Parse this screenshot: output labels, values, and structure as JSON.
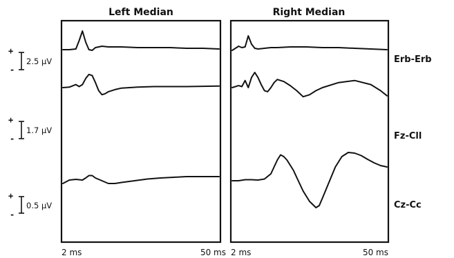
{
  "chart_data": {
    "type": "line",
    "xlabel": "",
    "ylabel": "",
    "xlim": [
      2,
      50
    ],
    "x_tick_labels": [
      "2 ms",
      "50 ms"
    ],
    "panels": [
      {
        "title": "Left Median",
        "series": [
          {
            "name": "Erb-Erb",
            "x": [
              2,
              4,
              6,
              7,
              8,
              9,
              10,
              11,
              12,
              14,
              16,
              20,
              25,
              30,
              35,
              40,
              45,
              50
            ],
            "y": [
              0,
              0,
              0.1,
              1.3,
              2.7,
              1.1,
              0,
              -0.1,
              0.3,
              0.5,
              0.4,
              0.4,
              0.3,
              0.3,
              0.3,
              0.2,
              0.2,
              0.1
            ]
          },
          {
            "name": "Fz-Cll",
            "x": [
              2,
              4,
              6,
              7,
              8,
              9,
              10,
              11,
              12,
              13,
              14,
              15,
              16,
              18,
              20,
              25,
              30,
              40,
              50
            ],
            "y": [
              0,
              0.05,
              0.3,
              0.1,
              0.3,
              0.9,
              1.3,
              1.2,
              0.5,
              -0.3,
              -0.7,
              -0.6,
              -0.4,
              -0.2,
              -0.05,
              0.05,
              0.1,
              0.1,
              0.15
            ]
          },
          {
            "name": "Cz-Cc",
            "x": [
              2,
              4,
              6,
              8,
              9,
              10,
              11,
              12,
              14,
              16,
              18,
              20,
              24,
              28,
              32,
              36,
              40,
              45,
              50
            ],
            "y": [
              -0.08,
              0.02,
              0.04,
              0.02,
              0.08,
              0.15,
              0.15,
              0.08,
              0,
              -0.08,
              -0.08,
              -0.05,
              0,
              0.05,
              0.08,
              0.1,
              0.12,
              0.12,
              0.12
            ]
          }
        ]
      },
      {
        "title": "Right Median",
        "series": [
          {
            "name": "Erb-Erb",
            "x": [
              2,
              3,
              4,
              5,
              6,
              7,
              8,
              9,
              10,
              12,
              14,
              16,
              20,
              25,
              30,
              35,
              40,
              45,
              50
            ],
            "y": [
              -0.1,
              0.2,
              0.5,
              0.3,
              0.4,
              2.0,
              0.8,
              0.2,
              0.1,
              0.2,
              0.3,
              0.3,
              0.4,
              0.4,
              0.3,
              0.3,
              0.2,
              0.1,
              0
            ]
          },
          {
            "name": "Fz-Cll",
            "x": [
              2,
              4,
              5,
              6,
              7,
              8,
              9,
              10,
              11,
              12,
              13,
              14,
              15,
              16,
              17,
              18,
              19,
              20,
              22,
              24,
              26,
              28,
              30,
              35,
              40,
              45,
              48,
              50
            ],
            "y": [
              0,
              0.2,
              0.1,
              0.7,
              0,
              1.0,
              1.5,
              1.0,
              0.3,
              -0.3,
              -0.4,
              0,
              0.5,
              0.8,
              0.7,
              0.6,
              0.4,
              0.2,
              -0.3,
              -0.9,
              -0.7,
              -0.3,
              0,
              0.5,
              0.7,
              0.3,
              -0.3,
              -0.8
            ]
          },
          {
            "name": "Cz-Cc",
            "x": [
              2,
              4,
              6,
              8,
              10,
              12,
              14,
              16,
              17,
              18,
              19,
              20,
              21,
              22,
              24,
              26,
              28,
              29,
              30,
              32,
              34,
              36,
              38,
              40,
              42,
              44,
              46,
              48,
              50
            ],
            "y": [
              0,
              0,
              0.03,
              0.03,
              0.02,
              0.05,
              0.2,
              0.6,
              0.75,
              0.7,
              0.6,
              0.45,
              0.3,
              0.1,
              -0.3,
              -0.6,
              -0.78,
              -0.72,
              -0.5,
              -0.05,
              0.4,
              0.7,
              0.82,
              0.8,
              0.73,
              0.62,
              0.52,
              0.44,
              0.4
            ]
          }
        ]
      }
    ],
    "channel_labels": [
      "Erb-Erb",
      "Fz-Cll",
      "Cz-Cc"
    ],
    "calibration_bars": [
      {
        "label": "2.5 µV",
        "plus": "+",
        "minus": "-",
        "channel": "Erb-Erb",
        "amplitude_uV": 2.5
      },
      {
        "label": "1.7 µV",
        "plus": "+",
        "minus": "-",
        "channel": "Fz-Cll",
        "amplitude_uV": 1.7
      },
      {
        "label": "0.5 µV",
        "plus": "+",
        "minus": "-",
        "channel": "Cz-Cc",
        "amplitude_uV": 0.5
      }
    ]
  }
}
